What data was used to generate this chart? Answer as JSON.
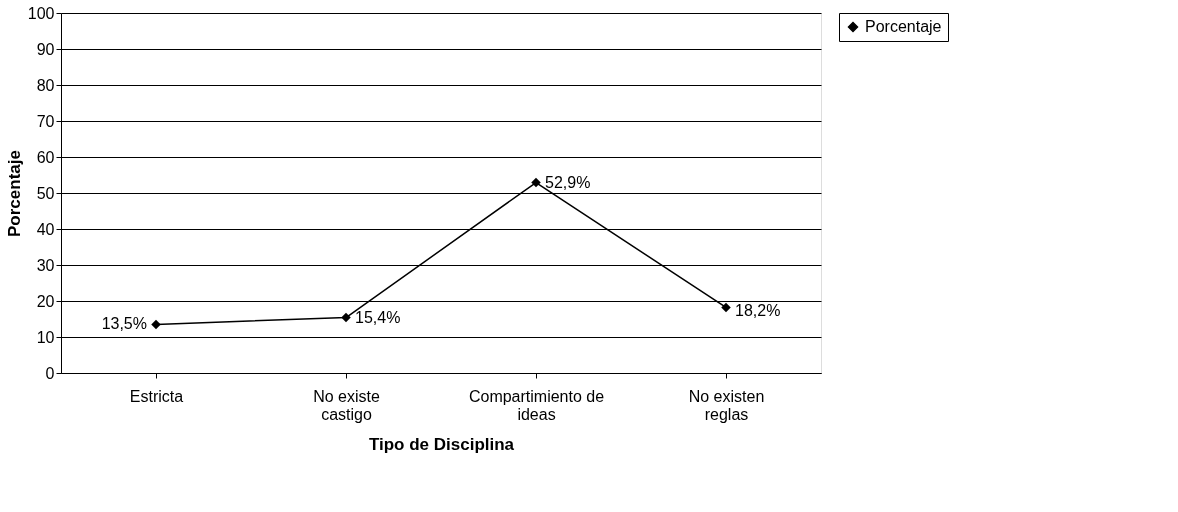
{
  "chart_data": {
    "type": "line",
    "xlabel": "Tipo de Disciplina",
    "ylabel": "Porcentaje",
    "categories": [
      "Estricta",
      "No existe castigo",
      "Compartimiento de ideas",
      "No existen reglas"
    ],
    "series": [
      {
        "name": "Porcentaje",
        "color": "#000000",
        "values": [
          13.5,
          15.4,
          52.9,
          18.2
        ],
        "value_labels": [
          "13,5%",
          "15,4%",
          "52,9%",
          "18,2%"
        ]
      }
    ],
    "ylim": [
      0,
      100
    ],
    "yticks": [
      0,
      10,
      20,
      30,
      40,
      50,
      60,
      70,
      80,
      90,
      100
    ],
    "grid": "y",
    "legend": "right",
    "marker": "diamond",
    "line_style": "solid"
  }
}
